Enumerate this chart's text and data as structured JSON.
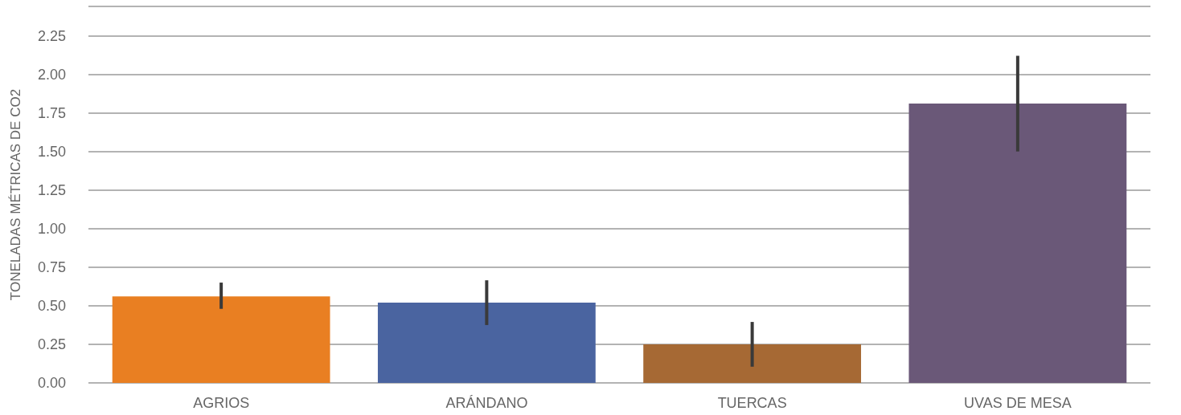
{
  "chart_data": {
    "type": "bar",
    "ylabel": "TONELADAS MÉTRICAS DE CO2",
    "categories": [
      "AGRIOS",
      "ARÁNDANO",
      "TUERCAS",
      "UVAS DE MESA"
    ],
    "values": [
      0.56,
      0.52,
      0.25,
      1.81
    ],
    "colors": [
      "#e97f22",
      "#4a64a0",
      "#a66934",
      "#6a5878"
    ],
    "errors": [
      [
        0.48,
        0.65
      ],
      [
        0.375,
        0.665
      ],
      [
        0.105,
        0.395
      ],
      [
        1.5,
        2.12
      ]
    ],
    "ylim": [
      0,
      2.44
    ],
    "yticks": [
      {
        "value": 0,
        "label": "0.00"
      },
      {
        "value": 0.25,
        "label": "0.25"
      },
      {
        "value": 0.5,
        "label": "0.50"
      },
      {
        "value": 0.75,
        "label": "0.75"
      },
      {
        "value": 1,
        "label": "1.00"
      },
      {
        "value": 1.25,
        "label": "1.25"
      },
      {
        "value": 1.5,
        "label": "1.50"
      },
      {
        "value": 1.75,
        "label": "1.75"
      },
      {
        "value": 2,
        "label": "2.00"
      },
      {
        "value": 2.25,
        "label": "2.25"
      },
      {
        "value": 2.44,
        "label": null
      }
    ],
    "grid": "y"
  }
}
